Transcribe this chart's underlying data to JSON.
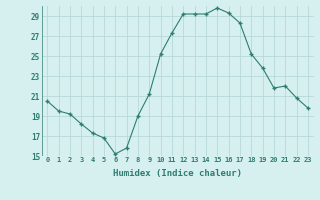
{
  "x": [
    0,
    1,
    2,
    3,
    4,
    5,
    6,
    7,
    8,
    9,
    10,
    11,
    12,
    13,
    14,
    15,
    16,
    17,
    18,
    19,
    20,
    21,
    22,
    23
  ],
  "y": [
    20.5,
    19.5,
    19.2,
    18.2,
    17.3,
    16.8,
    15.2,
    15.8,
    19.0,
    21.2,
    25.2,
    27.3,
    29.2,
    29.2,
    29.2,
    29.8,
    29.3,
    28.3,
    25.2,
    23.8,
    21.8,
    22.0,
    20.8,
    19.8
  ],
  "xlabel": "Humidex (Indice chaleur)",
  "line_color": "#2e7d6e",
  "marker_color": "#2e7d6e",
  "bg_color": "#d6f0f0",
  "grid_color": "#b8d8d8",
  "text_color": "#2e7d6e",
  "ylim": [
    15,
    30
  ],
  "yticks": [
    15,
    17,
    19,
    21,
    23,
    25,
    27,
    29
  ],
  "xticks": [
    0,
    1,
    2,
    3,
    4,
    5,
    6,
    7,
    8,
    9,
    10,
    11,
    12,
    13,
    14,
    15,
    16,
    17,
    18,
    19,
    20,
    21,
    22,
    23
  ],
  "xtick_labels": [
    "0",
    "1",
    "2",
    "3",
    "4",
    "5",
    "6",
    "7",
    "8",
    "9",
    "10",
    "11",
    "12",
    "13",
    "14",
    "15",
    "16",
    "17",
    "18",
    "19",
    "20",
    "21",
    "22",
    "23"
  ]
}
